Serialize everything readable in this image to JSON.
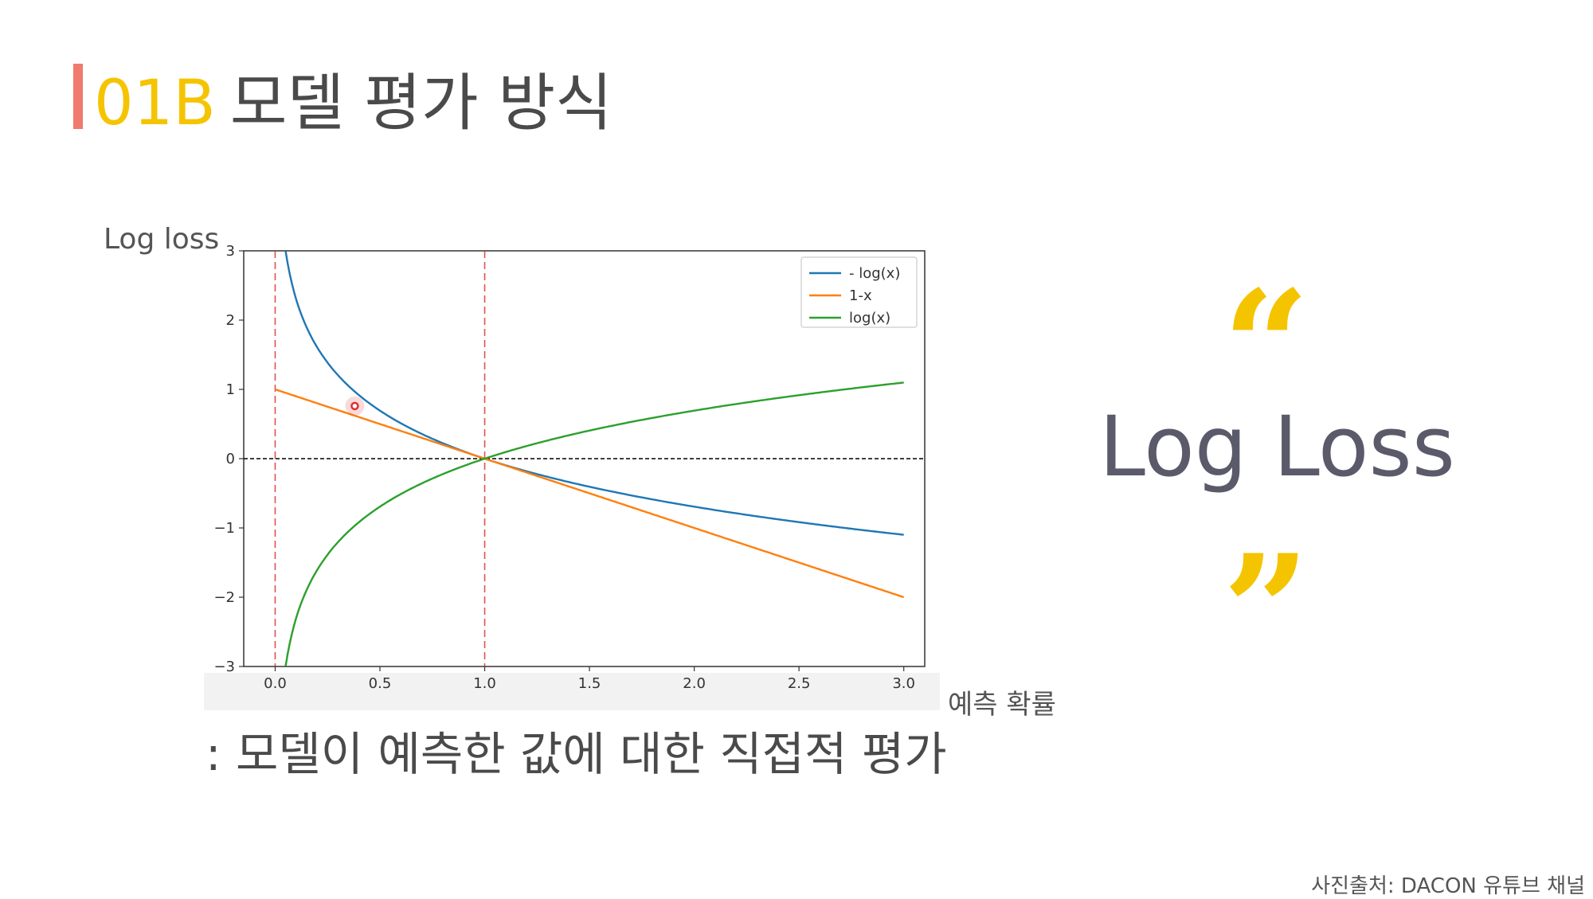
{
  "header": {
    "code": "01B",
    "title": "모델 평가 방식"
  },
  "ylabel_outside": "Log loss",
  "xlabel_outside": "예측 확률",
  "caption": ": 모델이 예측한 값에 대한 직접적 평가",
  "highlight": {
    "open_quote": "“",
    "text": "Log Loss",
    "close_quote": "”"
  },
  "source": "사진출처: DACON 유튜브 채널",
  "colors": {
    "accent_bar": "#f07a6e",
    "code": "#f5c400",
    "quote": "#f5c400"
  },
  "chart_data": {
    "type": "line",
    "xlim": [
      -0.15,
      3.1
    ],
    "ylim": [
      -3,
      3
    ],
    "xticks": [
      "0.0",
      "0.5",
      "1.0",
      "1.5",
      "2.0",
      "2.5",
      "3.0"
    ],
    "yticks": [
      "3",
      "2",
      "1",
      "0",
      "−1",
      "−2",
      "−3"
    ],
    "legend_position": "top-right",
    "series": [
      {
        "name": "- log(x)",
        "color": "#1f77b4",
        "function": "-ln(x)",
        "x_range": [
          0.05,
          3.0
        ]
      },
      {
        "name": "1-x",
        "color": "#ff7f0e",
        "function": "1-x",
        "x_range": [
          0.0,
          3.0
        ]
      },
      {
        "name": "log(x)",
        "color": "#2ca02c",
        "function": "ln(x)",
        "x_range": [
          0.05,
          3.0
        ]
      }
    ],
    "reference_lines": [
      {
        "orientation": "vertical",
        "value": 0.0,
        "style": "dashed",
        "color": "#d62728"
      },
      {
        "orientation": "vertical",
        "value": 1.0,
        "style": "dashed",
        "color": "#d62728"
      },
      {
        "orientation": "horizontal",
        "value": 0.0,
        "style": "dashed",
        "color": "#000000"
      }
    ],
    "marker": {
      "x": 0.38,
      "y": 0.76,
      "color": "#e03030"
    }
  }
}
